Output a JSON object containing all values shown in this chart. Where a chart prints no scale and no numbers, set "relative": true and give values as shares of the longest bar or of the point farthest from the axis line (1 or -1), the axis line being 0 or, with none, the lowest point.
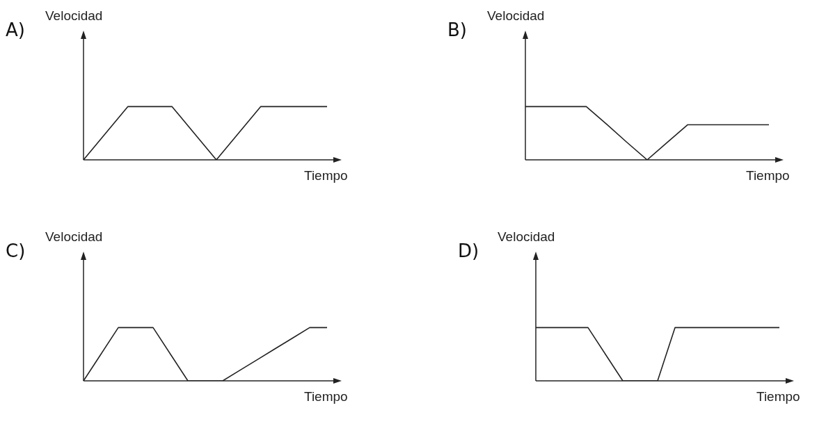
{
  "chart_data": [
    {
      "type": "line",
      "title": "A)",
      "ylabel": "Velocidad",
      "xlabel": "Tiempo",
      "relative": true,
      "marker": "none",
      "color": "#222222",
      "categories": [
        null,
        null,
        null,
        null,
        null,
        null,
        null,
        null,
        null,
        null,
        null,
        null
      ],
      "values": [
        0,
        0.5,
        1,
        1,
        1,
        0.5,
        0,
        0.5,
        1,
        1,
        1,
        1
      ]
    },
    {
      "type": "line",
      "title": "B)",
      "ylabel": "Velocidad",
      "xlabel": "Tiempo",
      "relative": true,
      "marker": "none",
      "color": "#222222",
      "categories": [
        null,
        null,
        null,
        null,
        null,
        null,
        null,
        null,
        null,
        null,
        null,
        null,
        null
      ],
      "values": [
        1,
        1,
        1,
        1,
        0.67,
        0.33,
        0,
        0.33,
        0.66,
        0.66,
        0.66,
        0.66,
        0.66
      ]
    },
    {
      "type": "line",
      "title": "C)",
      "ylabel": "Velocidad",
      "xlabel": "Tiempo",
      "relative": true,
      "marker": "none",
      "color": "#222222",
      "categories": [
        null,
        null,
        null,
        null,
        null,
        null,
        null,
        null,
        null,
        null,
        null,
        null,
        null,
        null,
        null
      ],
      "values": [
        0,
        0.5,
        1,
        1,
        1,
        0.5,
        0,
        0,
        0,
        0.2,
        0.4,
        0.6,
        0.8,
        1,
        1
      ]
    },
    {
      "type": "line",
      "title": "D)",
      "ylabel": "Velocidad",
      "xlabel": "Tiempo",
      "relative": true,
      "marker": "none",
      "color": "#222222",
      "categories": [
        null,
        null,
        null,
        null,
        null,
        null,
        null,
        null,
        null,
        null,
        null,
        null,
        null,
        null,
        null
      ],
      "values": [
        1,
        1,
        1,
        1,
        0.5,
        0,
        0,
        0,
        1,
        1,
        1,
        1,
        1,
        1,
        1
      ]
    }
  ]
}
